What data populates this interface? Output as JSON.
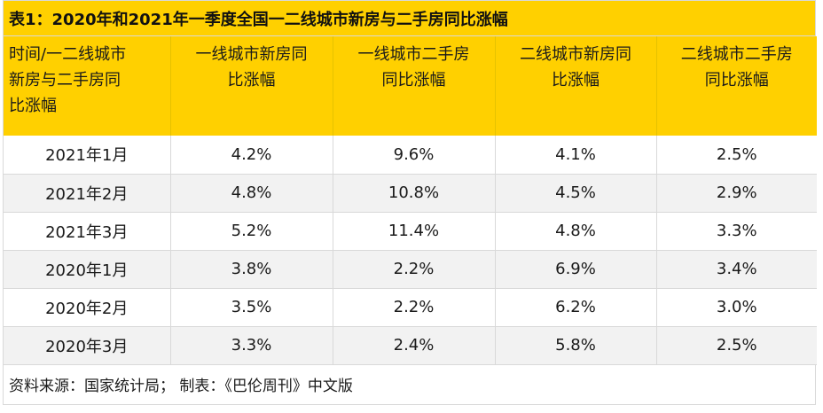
{
  "title": "表1：2020年和2021年一季度全国一二线城市新房与二手房同比涨幅",
  "headers": [
    [
      "时间/一二线城市",
      "新房与二手房同",
      "比涨幅"
    ],
    [
      "一线城市新房同",
      "比涨幅"
    ],
    [
      "一线城市二手房",
      "同比涨幅"
    ],
    [
      "二线城市新房同",
      "比涨幅"
    ],
    [
      "二线城市二手房",
      "同比涨幅"
    ]
  ],
  "rows": [
    [
      "2021年1月",
      "4.2%",
      "9.6%",
      "4.1%",
      "2.5%"
    ],
    [
      "2021年2月",
      "4.8%",
      "10.8%",
      "4.5%",
      "2.9%"
    ],
    [
      "2021年3月",
      "5.2%",
      "11.4%",
      "4.8%",
      "3.3%"
    ],
    [
      "2020年1月",
      "3.8%",
      "2.2%",
      "6.9%",
      "3.4%"
    ],
    [
      "2020年2月",
      "3.5%",
      "2.2%",
      "6.2%",
      "3.0%"
    ],
    [
      "2020年3月",
      "3.3%",
      "2.4%",
      "5.8%",
      "2.5%"
    ]
  ],
  "source": "资料来源：国家统计局； 制表：《巴伦周刊》中文版",
  "colors": {
    "header_bg": "#ffd000",
    "alt_row_bg": "#f2f2f2",
    "border": "#d9d9d9"
  }
}
